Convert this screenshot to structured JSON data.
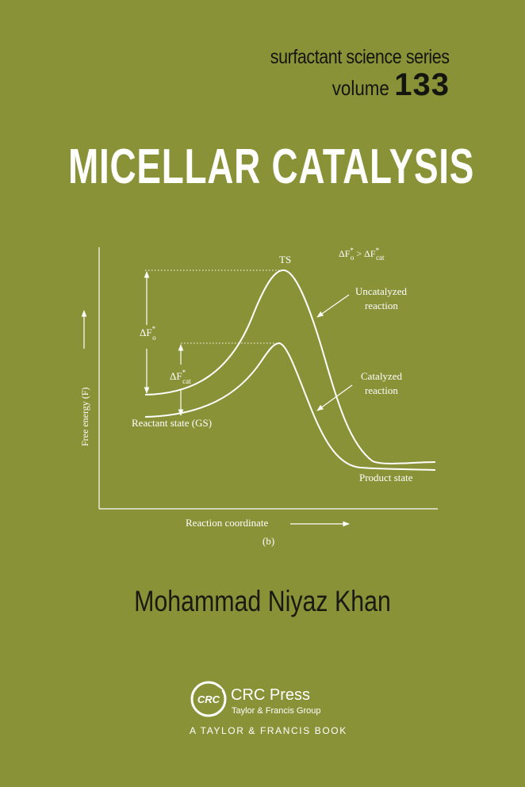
{
  "series": {
    "name": "surfactant science series",
    "volume_label": "volume",
    "volume_number": "133"
  },
  "title": "MICELLAR CATALYSIS",
  "figure": {
    "ts_label": "TS",
    "delta_relation": {
      "lhs": "ΔF",
      "lhs_sup": "*",
      "lhs_sub": "o",
      "op": " > ",
      "rhs": "ΔF",
      "rhs_sup": "*",
      "rhs_sub": "cat"
    },
    "uncatalyzed_label_line1": "Uncatalyzed",
    "uncatalyzed_label_line2": "reaction",
    "catalyzed_label_line1": "Catalyzed",
    "catalyzed_label_line2": "reaction",
    "delta_o": {
      "main": "ΔF",
      "sup": "*",
      "sub": "o"
    },
    "delta_cat": {
      "main": "ΔF",
      "sup": "*",
      "sub": "cat"
    },
    "reactant_label": "Reactant state (GS)",
    "product_label": "Product state",
    "y_axis_label": "Free energy (F)",
    "x_axis_label": "Reaction coordinate",
    "panel_label": "(b)"
  },
  "author": "Mohammad Niyaz Khan",
  "publisher": {
    "logo_text": "CRC",
    "name": "CRC Press",
    "group": "Taylor & Francis Group",
    "imprint": "A TAYLOR & FRANCIS BOOK"
  },
  "colors": {
    "background": "#8a9238",
    "title": "#ffffff",
    "text_dark": "#151510"
  }
}
